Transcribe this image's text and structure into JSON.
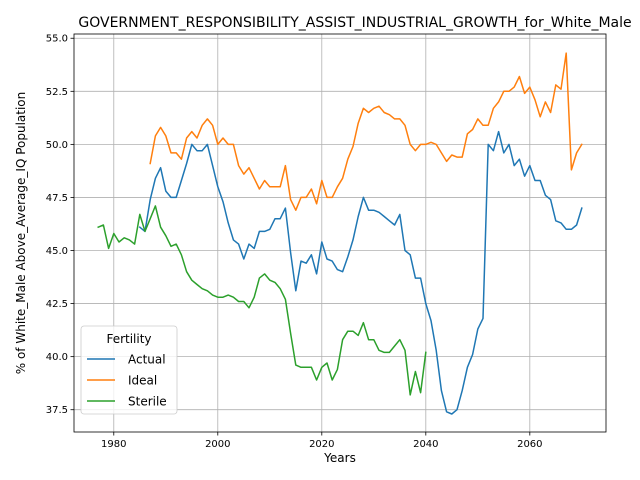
{
  "chart_data": {
    "type": "line",
    "title": "GOVERNMENT_RESPONSIBILITY_ASSIST_INDUSTRIAL_GROWTH_for_White_Male",
    "xlabel": "Years",
    "ylabel": "% of White_Male Above_Average_IQ Population",
    "xlim": [
      1972.35,
      2074.65
    ],
    "ylim": [
      36.45,
      55.2
    ],
    "xticks": [
      1980,
      2000,
      2020,
      2040,
      2060
    ],
    "yticks": [
      37.5,
      40.0,
      42.5,
      45.0,
      47.5,
      50.0,
      52.5,
      55.0
    ],
    "grid": true,
    "legend": {
      "title": "Fertility",
      "location": "lower-left"
    },
    "series": [
      {
        "name": "Actual",
        "color": "#1f77b4",
        "x": [
          1985,
          1986,
          1987,
          1988,
          1989,
          1990,
          1991,
          1992,
          1993,
          1994,
          1995,
          1996,
          1997,
          1998,
          1999,
          2000,
          2001,
          2002,
          2003,
          2004,
          2005,
          2006,
          2007,
          2008,
          2009,
          2010,
          2011,
          2012,
          2013,
          2014,
          2015,
          2016,
          2017,
          2018,
          2019,
          2020,
          2021,
          2022,
          2023,
          2024,
          2025,
          2026,
          2027,
          2028,
          2029,
          2030,
          2031,
          2032,
          2033,
          2034,
          2035,
          2036,
          2037,
          2038,
          2039,
          2040,
          2041,
          2042,
          2043,
          2044,
          2045,
          2046,
          2047,
          2048,
          2049,
          2050,
          2051,
          2052,
          2053,
          2054,
          2055,
          2056,
          2057,
          2058,
          2059,
          2060,
          2061,
          2062,
          2063,
          2064,
          2065,
          2066,
          2067,
          2068,
          2069,
          2070
        ],
        "y": [
          46.1,
          45.9,
          47.4,
          48.4,
          48.9,
          47.8,
          47.5,
          47.5,
          48.3,
          49.1,
          50.0,
          49.7,
          49.7,
          50.0,
          49.0,
          48.0,
          47.3,
          46.3,
          45.5,
          45.3,
          44.6,
          45.3,
          45.1,
          45.9,
          45.9,
          46.0,
          46.5,
          46.5,
          47.0,
          44.9,
          43.1,
          44.5,
          44.4,
          44.8,
          43.9,
          45.4,
          44.6,
          44.5,
          44.1,
          44.0,
          44.7,
          45.5,
          46.6,
          47.5,
          46.9,
          46.9,
          46.8,
          46.6,
          46.4,
          46.2,
          46.7,
          45.0,
          44.8,
          43.7,
          43.7,
          42.5,
          41.7,
          40.3,
          38.4,
          37.4,
          37.3,
          37.5,
          38.4,
          39.5,
          40.1,
          41.3,
          41.8,
          50.0,
          49.7,
          50.6,
          49.6,
          50.0,
          49.0,
          49.3,
          48.5,
          49.0,
          48.3,
          48.3,
          47.6,
          47.4,
          46.4,
          46.3,
          46.0,
          46.0,
          46.2,
          47.0
        ]
      },
      {
        "name": "Ideal",
        "color": "#ff7f0e",
        "x": [
          1987,
          1988,
          1989,
          1990,
          1991,
          1992,
          1993,
          1994,
          1995,
          1996,
          1997,
          1998,
          1999,
          2000,
          2001,
          2002,
          2003,
          2004,
          2005,
          2006,
          2007,
          2008,
          2009,
          2010,
          2011,
          2012,
          2013,
          2014,
          2015,
          2016,
          2017,
          2018,
          2019,
          2020,
          2021,
          2022,
          2023,
          2024,
          2025,
          2026,
          2027,
          2028,
          2029,
          2030,
          2031,
          2032,
          2033,
          2034,
          2035,
          2036,
          2037,
          2038,
          2039,
          2040,
          2041,
          2042,
          2043,
          2044,
          2045,
          2046,
          2047,
          2048,
          2049,
          2050,
          2051,
          2052,
          2053,
          2054,
          2055,
          2056,
          2057,
          2058,
          2059,
          2060,
          2061,
          2062,
          2063,
          2064,
          2065,
          2066,
          2067,
          2068,
          2069,
          2070
        ],
        "y": [
          49.1,
          50.4,
          50.8,
          50.4,
          49.6,
          49.6,
          49.3,
          50.3,
          50.6,
          50.3,
          50.9,
          51.2,
          50.9,
          50.0,
          50.3,
          50.0,
          50.0,
          49.0,
          48.6,
          48.9,
          48.4,
          47.9,
          48.3,
          48.0,
          48.0,
          48.0,
          49.0,
          47.4,
          46.9,
          47.5,
          47.5,
          47.9,
          47.2,
          48.3,
          47.5,
          47.5,
          48.0,
          48.4,
          49.3,
          49.9,
          51.0,
          51.7,
          51.5,
          51.7,
          51.8,
          51.5,
          51.4,
          51.2,
          51.2,
          50.9,
          50.0,
          49.7,
          50.0,
          50.0,
          50.1,
          50.0,
          49.6,
          49.2,
          49.5,
          49.4,
          49.4,
          50.5,
          50.7,
          51.2,
          50.9,
          50.9,
          51.7,
          52.0,
          52.5,
          52.5,
          52.7,
          53.2,
          52.4,
          52.7,
          52.1,
          51.3,
          52.0,
          51.5,
          52.8,
          52.6,
          54.3,
          48.8,
          49.6,
          50.0
        ]
      },
      {
        "name": "Sterile",
        "color": "#2ca02c",
        "x": [
          1977,
          1978,
          1979,
          1980,
          1981,
          1982,
          1983,
          1984,
          1985,
          1986,
          1987,
          1988,
          1989,
          1990,
          1991,
          1992,
          1993,
          1994,
          1995,
          1996,
          1997,
          1998,
          1999,
          2000,
          2001,
          2002,
          2003,
          2004,
          2005,
          2006,
          2007,
          2008,
          2009,
          2010,
          2011,
          2012,
          2013,
          2014,
          2015,
          2016,
          2017,
          2018,
          2019,
          2020,
          2021,
          2022,
          2023,
          2024,
          2025,
          2026,
          2027,
          2028,
          2029,
          2030,
          2031,
          2032,
          2033,
          2034,
          2035,
          2036,
          2037,
          2038,
          2039,
          2040
        ],
        "y": [
          46.1,
          46.2,
          45.1,
          45.8,
          45.4,
          45.6,
          45.5,
          45.3,
          46.7,
          45.9,
          46.5,
          47.1,
          46.1,
          45.7,
          45.2,
          45.3,
          44.8,
          44.0,
          43.6,
          43.4,
          43.2,
          43.1,
          42.9,
          42.8,
          42.8,
          42.9,
          42.8,
          42.6,
          42.6,
          42.3,
          42.8,
          43.7,
          43.9,
          43.6,
          43.5,
          43.2,
          42.7,
          41.1,
          39.6,
          39.5,
          39.5,
          39.5,
          38.9,
          39.5,
          39.7,
          38.9,
          39.4,
          40.8,
          41.2,
          41.2,
          41.0,
          41.6,
          40.8,
          40.8,
          40.3,
          40.2,
          40.2,
          40.5,
          40.8,
          40.3,
          38.2,
          39.3,
          38.3,
          40.2
        ]
      }
    ]
  }
}
